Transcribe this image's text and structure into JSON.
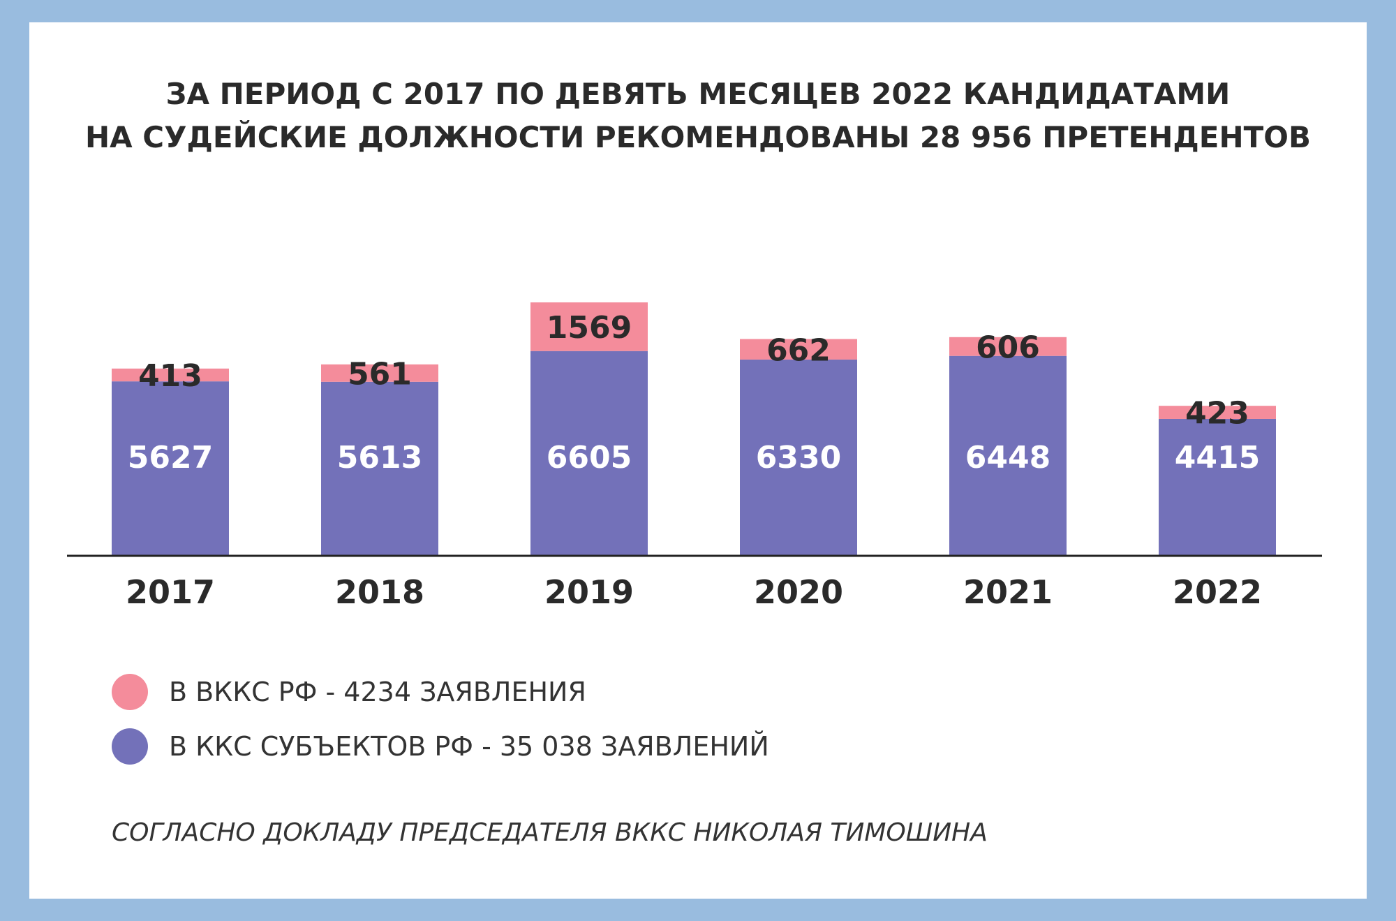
{
  "title_lines": [
    "ЗА ПЕРИОД С 2017 ПО ДЕВЯТЬ МЕСЯЦЕВ 2022 КАНДИДАТАМИ",
    "НА СУДЕЙСКИЕ ДОЛЖНОСТИ РЕКОМЕНДОВАНЫ 28 956 ПРЕТЕНДЕНТОВ"
  ],
  "colors": {
    "frame": "#99bcdf",
    "panel": "#ffffff",
    "top_series": "#f48c9b",
    "bottom_series": "#7371b9",
    "axis": "#222222",
    "text_dark": "#2a2a2a",
    "text_light": "#ffffff"
  },
  "legend": [
    {
      "label": "В ВККС РФ - 4234 ЗАЯВЛЕНИЯ",
      "color": "#f48c9b"
    },
    {
      "label": "В ККС СУБЪЕКТОВ РФ - 35 038 ЗАЯВЛЕНИЙ",
      "color": "#7371b9"
    }
  ],
  "source": "СОГЛАСНО ДОКЛАДУ ПРЕДСЕДАТЕЛЯ ВККС НИКОЛАЯ ТИМОШИНА",
  "chart_data": {
    "type": "bar",
    "stacked": true,
    "categories": [
      "2017",
      "2018",
      "2019",
      "2020",
      "2021",
      "2022"
    ],
    "series": [
      {
        "name": "В ККС СУБЪЕКТОВ РФ - 35 038 ЗАЯВЛЕНИЙ",
        "values": [
          5627,
          5613,
          6605,
          6330,
          6448,
          4415
        ]
      },
      {
        "name": "В ВККС РФ - 4234 ЗАЯВЛЕНИЯ",
        "values": [
          413,
          561,
          1569,
          662,
          606,
          423
        ]
      }
    ],
    "ylim": [
      0,
      8500
    ],
    "grid": false,
    "legend_position": "bottom-left"
  }
}
